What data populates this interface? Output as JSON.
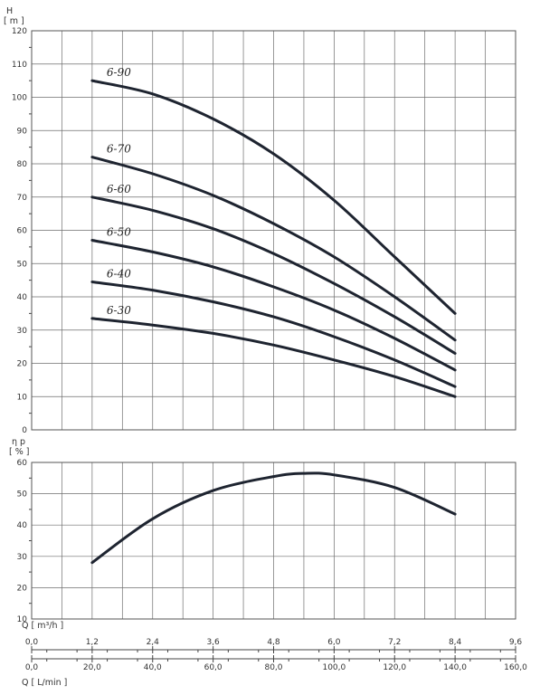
{
  "chart_data": [
    {
      "type": "line",
      "ylabel": "H",
      "yunit": "[ m ]",
      "xlim": [
        0,
        9.6
      ],
      "ylim": [
        0,
        120
      ],
      "yticks": [
        "0",
        "10",
        "20",
        "30",
        "40",
        "50",
        "60",
        "70",
        "80",
        "90",
        "100",
        "110",
        "120"
      ],
      "grid": true,
      "series": [
        {
          "name": "6-90",
          "x": [
            1.2,
            2.4,
            3.6,
            4.8,
            6.0,
            7.2,
            8.4
          ],
          "y": [
            105,
            101,
            93.5,
            83,
            69,
            52,
            35
          ]
        },
        {
          "name": "6-70",
          "x": [
            1.2,
            2.4,
            3.6,
            4.8,
            6.0,
            7.2,
            8.4
          ],
          "y": [
            82,
            77,
            70.5,
            62,
            52,
            40,
            27
          ]
        },
        {
          "name": "6-60",
          "x": [
            1.2,
            2.4,
            3.6,
            4.8,
            6.0,
            7.2,
            8.4
          ],
          "y": [
            70,
            66,
            60.5,
            53,
            44,
            34,
            23
          ]
        },
        {
          "name": "6-50",
          "x": [
            1.2,
            2.4,
            3.6,
            4.8,
            6.0,
            7.2,
            8.4
          ],
          "y": [
            57,
            53.5,
            49,
            43,
            36,
            27.5,
            18
          ]
        },
        {
          "name": "6-40",
          "x": [
            1.2,
            2.4,
            3.6,
            4.8,
            6.0,
            7.2,
            8.4
          ],
          "y": [
            44.5,
            42,
            38.5,
            34,
            28,
            21,
            13
          ]
        },
        {
          "name": "6-30",
          "x": [
            1.2,
            2.4,
            3.6,
            4.8,
            6.0,
            7.2,
            8.4
          ],
          "y": [
            33.5,
            31.5,
            29,
            25.5,
            21,
            16,
            10
          ]
        }
      ]
    },
    {
      "type": "line",
      "ylabel": "η p",
      "yunit": "[ % ]",
      "xlim": [
        0,
        9.6
      ],
      "ylim": [
        10,
        60
      ],
      "yticks": [
        "10",
        "20",
        "30",
        "40",
        "50",
        "60"
      ],
      "grid": true,
      "series": [
        {
          "x": [
            1.2,
            2.4,
            3.6,
            4.8,
            5.4,
            6.0,
            7.2,
            8.4
          ],
          "y": [
            28,
            42,
            51,
            55.5,
            56.5,
            56,
            52,
            43.5
          ]
        }
      ]
    }
  ],
  "axes": {
    "x_m3h": {
      "label": "Q [ m³/h ]",
      "ticks": [
        0,
        1.2,
        2.4,
        3.6,
        4.8,
        6.0,
        7.2,
        8.4,
        9.6
      ],
      "tick_labels": [
        "0,0",
        "1,2",
        "2,4",
        "3,6",
        "4,8",
        "6,0",
        "7,2",
        "8,4",
        "9,6"
      ]
    },
    "x_lmin": {
      "label": "Q [ L/min ]",
      "ticks": [
        0,
        20,
        40,
        60,
        80,
        100,
        120,
        140,
        160
      ],
      "tick_labels": [
        "0,0",
        "20,0",
        "40,0",
        "60,0",
        "80,0",
        "100,0",
        "120,0",
        "140,0",
        "160,0"
      ]
    }
  },
  "colors": {
    "curve": "#1e2430",
    "grid": "#6e6e6e",
    "text": "#333333"
  }
}
